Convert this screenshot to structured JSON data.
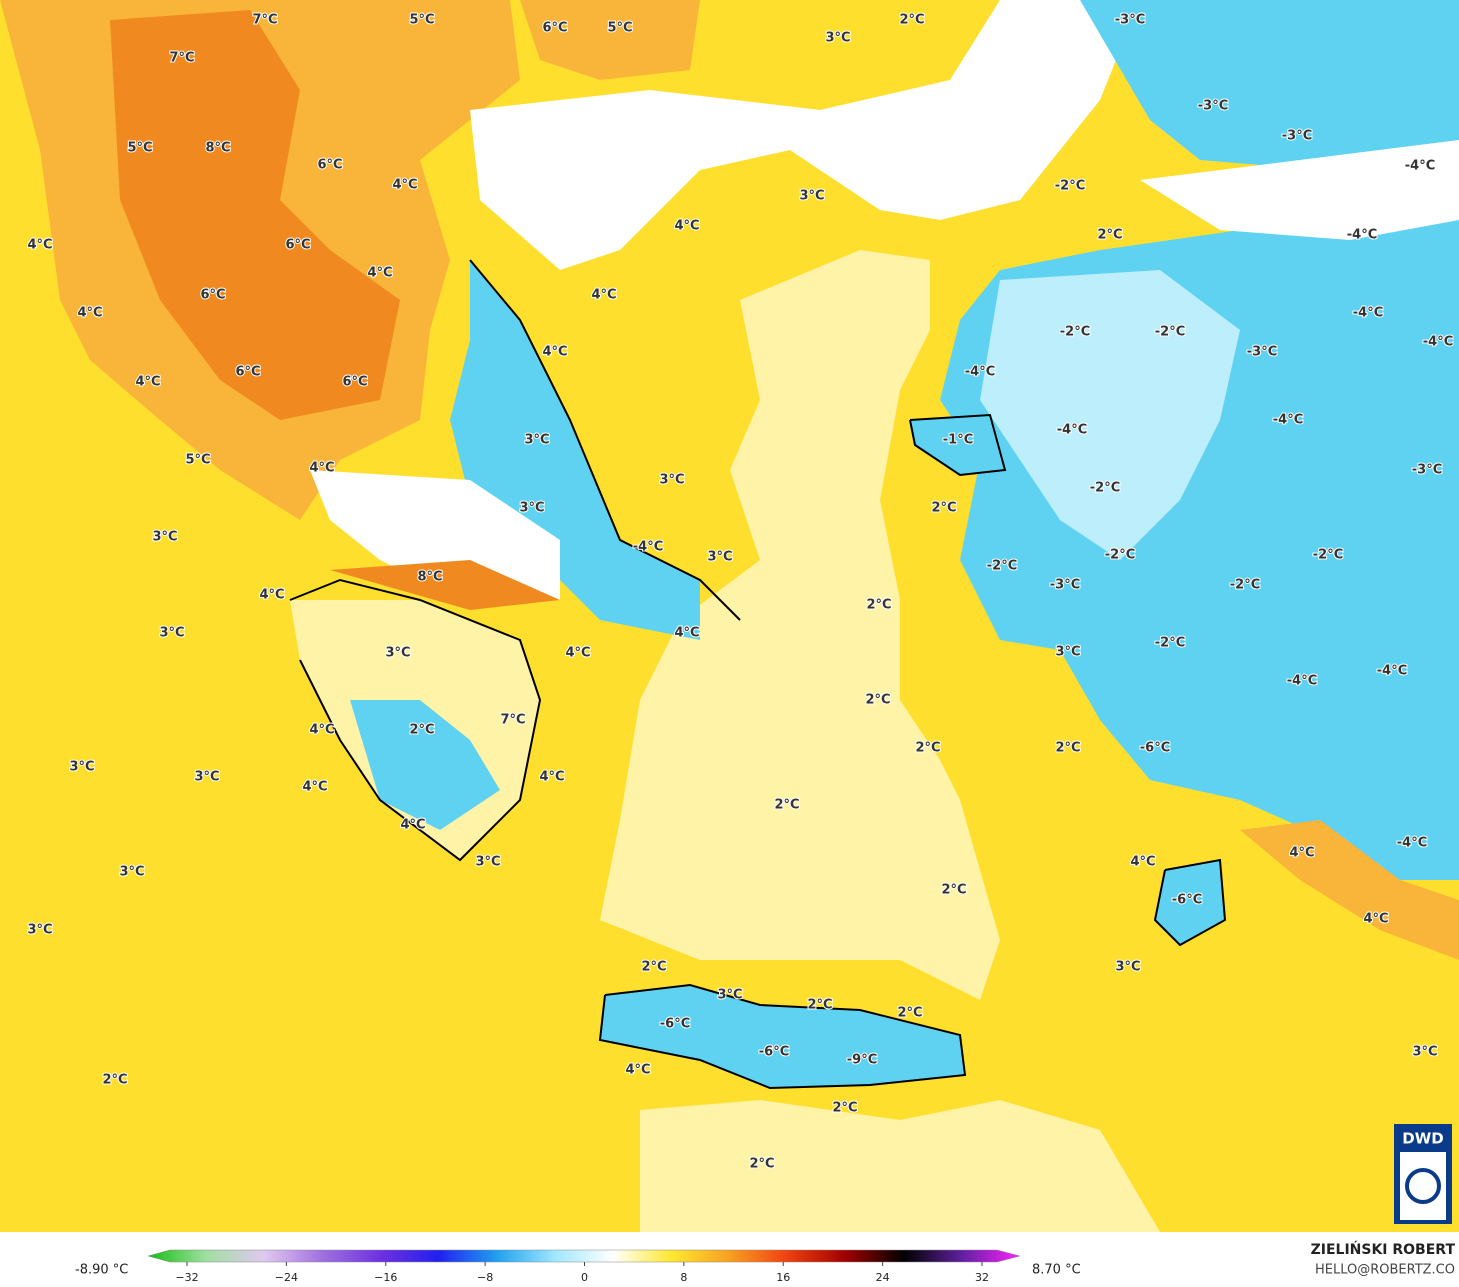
{
  "map": {
    "labels": [
      "7°C",
      "5°C",
      "6°C",
      "5°C",
      "2°C",
      "3°C",
      "-3°C",
      "7°C",
      "5°C",
      "8°C",
      "6°C",
      "4°C",
      "-3°C",
      "-3°C",
      "-4°C",
      "-2°C",
      "3°C",
      "4°C",
      "4°C",
      "6°C",
      "4°C",
      "2°C",
      "-4°C",
      "6°C",
      "4°C",
      "4°C",
      "-4°C",
      "-2°C",
      "-2°C",
      "-4°C",
      "4°C",
      "-3°C",
      "4°C",
      "6°C",
      "6°C",
      "-4°C",
      "-4°C",
      "-4°C",
      "3°C",
      "-1°C",
      "5°C",
      "4°C",
      "3°C",
      "-3°C",
      "-2°C",
      "3°C",
      "2°C",
      "3°C",
      "-4°C",
      "3°C",
      "-2°C",
      "-2°C",
      "-2°C",
      "-3°C",
      "-2°C",
      "8°C",
      "4°C",
      "2°C",
      "3°C",
      "4°C",
      "-2°C",
      "3°C",
      "4°C",
      "3°C",
      "-4°C",
      "-4°C",
      "2°C",
      "7°C",
      "2°C",
      "4°C",
      "2°C",
      "2°C",
      "-6°C",
      "3°C",
      "3°C",
      "4°C",
      "4°C",
      "2°C",
      "4°C",
      "3°C",
      "4°C",
      "4°C",
      "-4°C",
      "3°C",
      "2°C",
      "-6°C",
      "4°C",
      "3°C",
      "3°C",
      "2°C",
      "3°C",
      "2°C",
      "2°C",
      "-6°C",
      "-6°C",
      "-9°C",
      "3°C",
      "4°C",
      "2°C",
      "2°C",
      "2°C"
    ]
  },
  "legend": {
    "min_label": "-8.90 °C",
    "max_label": "8.70 °C",
    "range": [
      -32,
      32
    ],
    "ticks": [
      {
        "value": -32,
        "label": "−32"
      },
      {
        "value": -24,
        "label": "−24"
      },
      {
        "value": -16,
        "label": "−16"
      },
      {
        "value": -8,
        "label": "−8"
      },
      0,
      8,
      16,
      24,
      32
    ],
    "colors": [
      "#10c010",
      "#a0e0a0",
      "#e0c8f0",
      "#a070e0",
      "#7030e0",
      "#2020f0",
      "#20a0f0",
      "#a0e8ff",
      "#ffffff",
      "#ffe830",
      "#f8a020",
      "#f04010",
      "#a00000",
      "#000000",
      "#6020a0",
      "#ff20ff"
    ]
  },
  "credits": {
    "author": "ZIELIŃSKI ROBERT",
    "contact": "HELLO@ROBERTZ.CO",
    "logo": "DWD"
  }
}
